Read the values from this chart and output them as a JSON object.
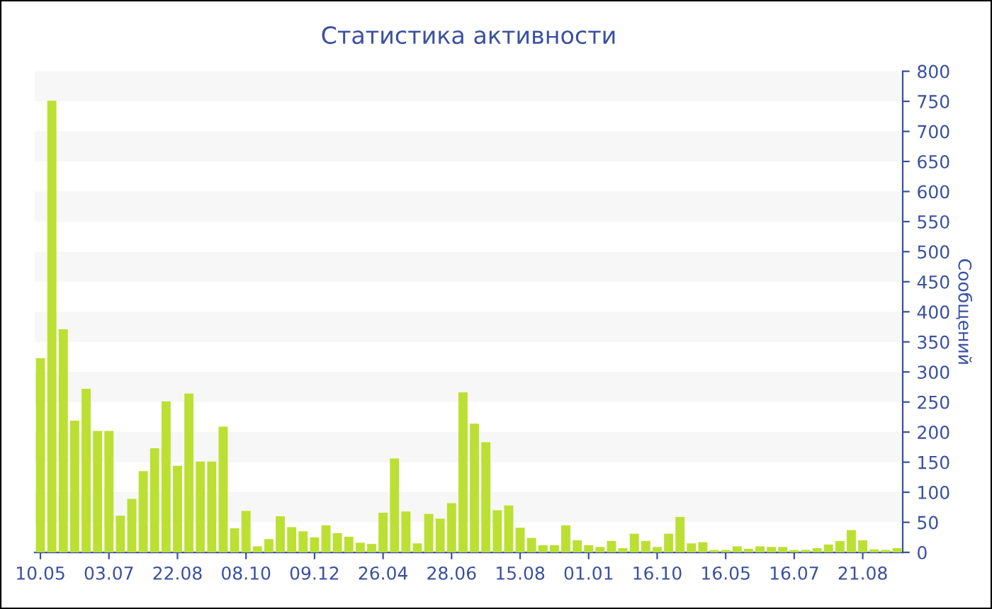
{
  "chart_data": {
    "type": "bar",
    "title": "Статистика активности",
    "ylabel": "Сообщений",
    "categories": [
      "10.05",
      null,
      null,
      null,
      null,
      null,
      "03.07",
      null,
      null,
      null,
      null,
      null,
      "22.08",
      null,
      null,
      null,
      null,
      null,
      "08.10",
      null,
      null,
      null,
      null,
      null,
      "09.12",
      null,
      null,
      null,
      null,
      null,
      "26.04",
      null,
      null,
      null,
      null,
      null,
      "28.06",
      null,
      null,
      null,
      null,
      null,
      "15.08",
      null,
      null,
      null,
      null,
      null,
      "01.01",
      null,
      null,
      null,
      null,
      null,
      "16.10",
      null,
      null,
      null,
      null,
      null,
      "16.05",
      null,
      null,
      null,
      null,
      null,
      "16.07",
      null,
      null,
      null,
      null,
      null,
      "21.08",
      null,
      null,
      null
    ],
    "values": [
      323,
      751,
      371,
      219,
      272,
      202,
      202,
      61,
      89,
      135,
      173,
      251,
      144,
      264,
      151,
      151,
      209,
      40,
      69,
      10,
      22,
      60,
      42,
      35,
      25,
      45,
      32,
      26,
      16,
      14,
      66,
      156,
      68,
      15,
      64,
      56,
      82,
      266,
      214,
      183,
      70,
      78,
      41,
      24,
      12,
      12,
      45,
      20,
      12,
      9,
      19,
      7,
      31,
      19,
      9,
      31,
      59,
      15,
      17,
      4,
      4,
      10,
      6,
      10,
      9,
      9,
      4,
      4,
      7,
      13,
      19,
      37,
      20,
      5,
      4,
      7
    ],
    "color": "#bbe033",
    "ylim": [
      0,
      800
    ],
    "yticks": [
      0,
      50,
      100,
      150,
      200,
      250,
      300,
      350,
      400,
      450,
      500,
      550,
      600,
      650,
      700,
      750,
      800
    ],
    "bands": [
      {
        "axis": "y",
        "from": 50,
        "to": 100,
        "color": "#f7f7f7"
      },
      {
        "axis": "y",
        "from": 150,
        "to": 200,
        "color": "#f7f7f7"
      },
      {
        "axis": "y",
        "from": 250,
        "to": 300,
        "color": "#f7f7f7"
      },
      {
        "axis": "y",
        "from": 350,
        "to": 400,
        "color": "#f7f7f7"
      },
      {
        "axis": "y",
        "from": 450,
        "to": 500,
        "color": "#f7f7f7"
      },
      {
        "axis": "y",
        "from": 550,
        "to": 600,
        "color": "#f7f7f7"
      },
      {
        "axis": "y",
        "from": 650,
        "to": 700,
        "color": "#f7f7f7"
      },
      {
        "axis": "y",
        "from": 750,
        "to": 800,
        "color": "#f7f7f7"
      }
    ]
  }
}
